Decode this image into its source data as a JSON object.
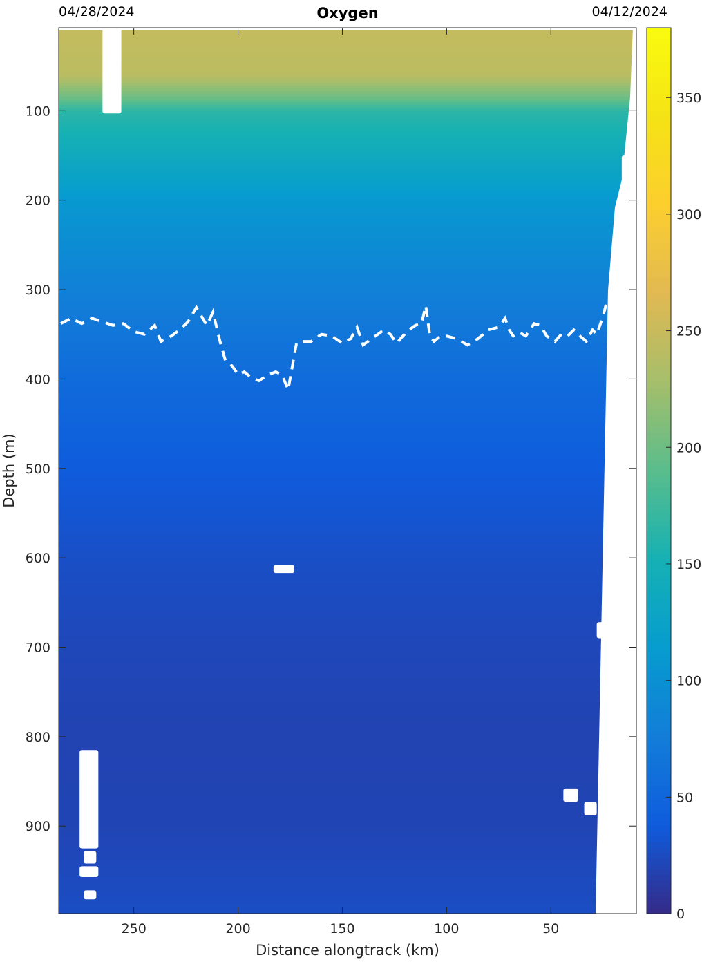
{
  "chart_data": {
    "type": "heatmap",
    "title": "Oxygen",
    "xlabel": "Distance alongtrack (km)",
    "ylabel": "Depth (m)",
    "start_date": "04/28/2024",
    "end_date": "04/12/2024",
    "x_reversed": true,
    "y_reversed": true,
    "xlim": [
      286,
      9
    ],
    "ylim": [
      7,
      998
    ],
    "x_ticks": [
      250,
      200,
      150,
      100,
      50
    ],
    "y_ticks": [
      100,
      200,
      300,
      400,
      500,
      600,
      700,
      800,
      900
    ],
    "colorbar": {
      "range": [
        0,
        380
      ],
      "ticks": [
        0,
        50,
        100,
        150,
        200,
        250,
        300,
        350
      ],
      "colormap": "parula"
    },
    "depth_profile": {
      "depths": [
        7,
        60,
        85,
        100,
        130,
        200,
        300,
        400,
        500,
        600,
        700,
        800,
        900,
        998
      ],
      "oxygen": [
        248,
        242,
        200,
        165,
        150,
        110,
        80,
        55,
        38,
        28,
        22,
        19,
        20,
        27
      ]
    },
    "contour_line": {
      "style": "white-dashed",
      "distance": [
        285,
        280,
        275,
        270,
        265,
        260,
        255,
        250,
        245,
        240,
        237,
        232,
        228,
        224,
        220,
        215,
        212,
        209,
        206,
        203,
        200,
        197,
        194,
        190,
        186,
        182,
        179,
        176,
        172,
        169,
        165,
        160,
        155,
        150,
        146,
        143,
        140,
        136,
        133,
        130,
        127,
        124,
        121,
        118,
        115,
        112,
        110,
        108,
        106,
        103,
        100,
        95,
        90,
        85,
        80,
        75,
        72,
        70,
        68,
        65,
        62,
        58,
        55,
        52,
        48,
        45,
        42,
        39,
        36,
        33,
        30,
        28,
        25,
        23
      ],
      "depth": [
        338,
        332,
        338,
        332,
        336,
        340,
        338,
        347,
        350,
        340,
        358,
        352,
        345,
        336,
        320,
        340,
        325,
        355,
        380,
        385,
        395,
        392,
        398,
        402,
        396,
        392,
        395,
        412,
        360,
        358,
        358,
        350,
        352,
        360,
        355,
        342,
        362,
        355,
        350,
        345,
        350,
        360,
        352,
        345,
        340,
        338,
        318,
        352,
        358,
        352,
        352,
        355,
        362,
        355,
        345,
        342,
        332,
        345,
        352,
        348,
        352,
        338,
        340,
        352,
        358,
        350,
        352,
        345,
        352,
        358,
        345,
        350,
        330,
        312
      ]
    },
    "data_gaps": [
      {
        "x": [
          265,
          256
        ],
        "y": [
          7,
          103
        ]
      },
      {
        "x": [
          276,
          267
        ],
        "y": [
          815,
          925
        ]
      },
      {
        "x": [
          274,
          268
        ],
        "y": [
          928,
          942
        ]
      },
      {
        "x": [
          276,
          267
        ],
        "y": [
          945,
          957
        ]
      },
      {
        "x": [
          274,
          268
        ],
        "y": [
          972,
          982
        ]
      },
      {
        "x": [
          183,
          173
        ],
        "y": [
          608,
          617
        ]
      },
      {
        "x": [
          28,
          22
        ],
        "y": [
          672,
          690
        ]
      },
      {
        "x": [
          44,
          37
        ],
        "y": [
          858,
          873
        ]
      },
      {
        "x": [
          34,
          28
        ],
        "y": [
          873,
          888
        ]
      },
      {
        "x": [
          16,
          12
        ],
        "y": [
          150,
          215
        ]
      }
    ],
    "grid": false
  }
}
